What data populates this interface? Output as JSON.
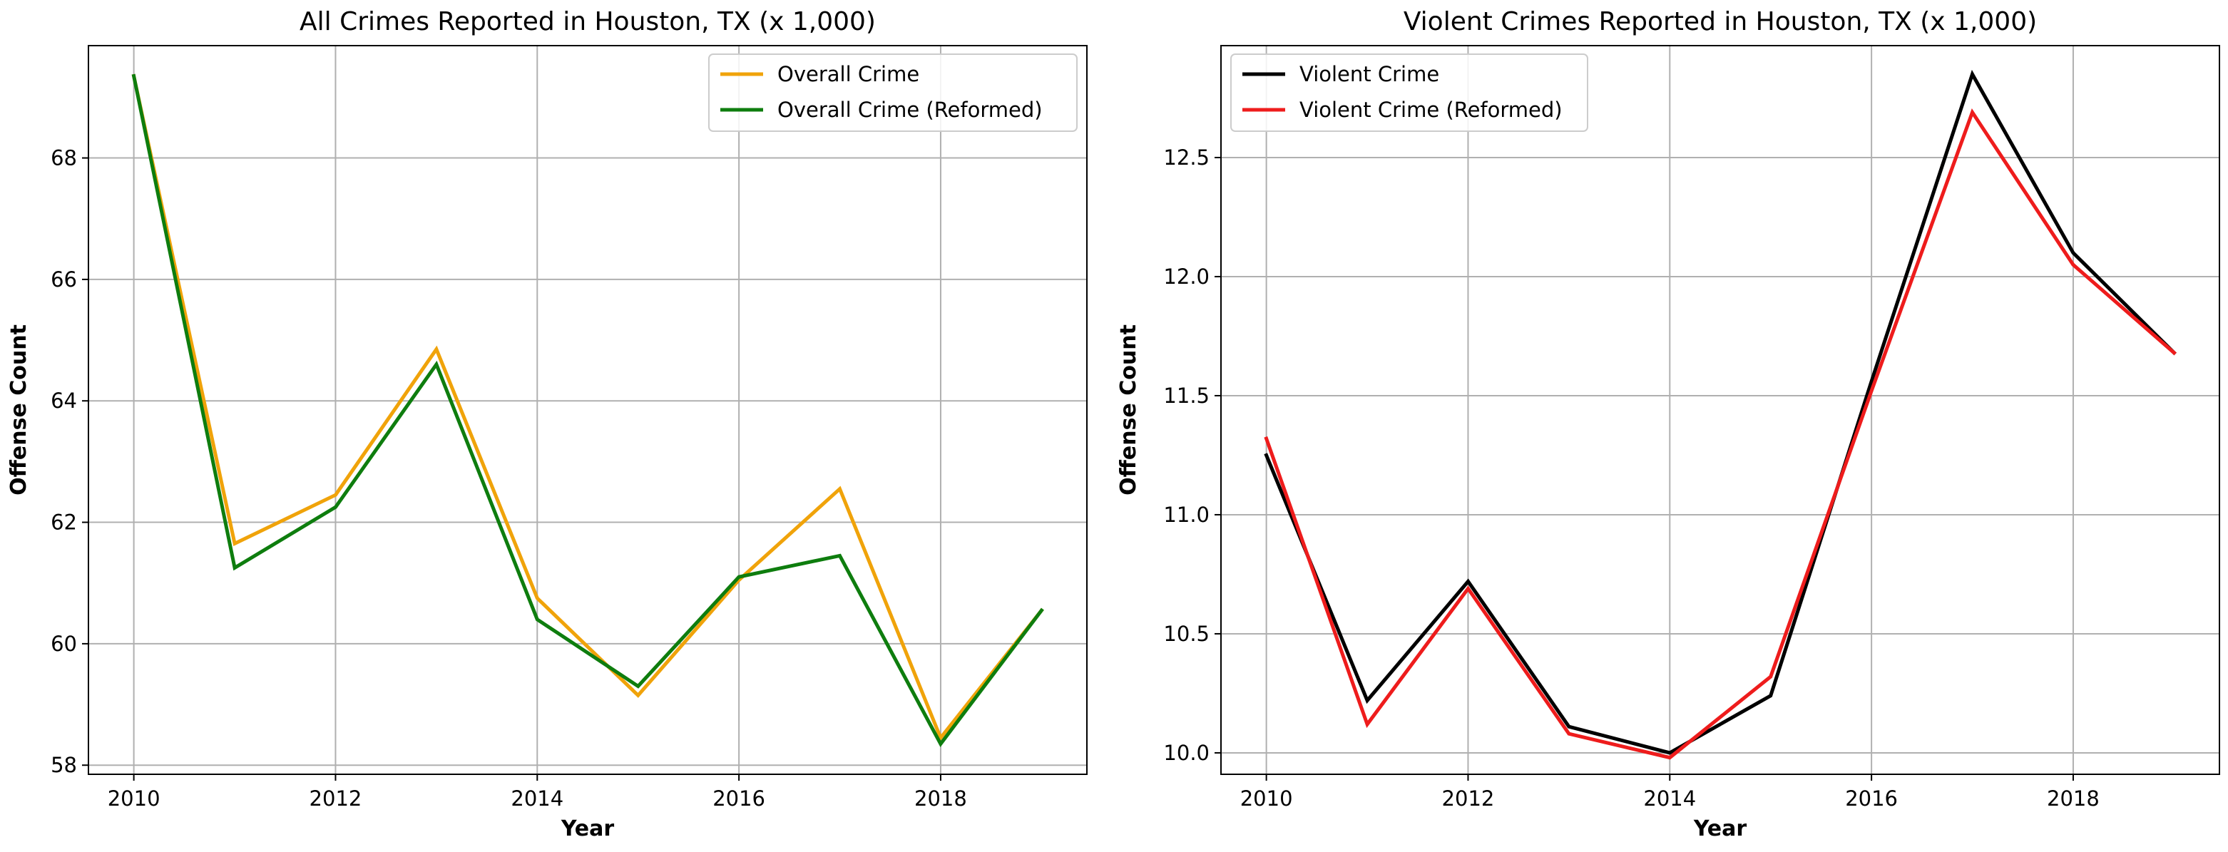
{
  "chart_data": [
    {
      "type": "line",
      "title": "All Crimes Reported in Houston, TX (x 1,000)",
      "xlabel": "Year",
      "ylabel": "Offense Count",
      "x": [
        2010,
        2011,
        2012,
        2013,
        2014,
        2015,
        2016,
        2017,
        2018,
        2019
      ],
      "xticks": [
        2010,
        2012,
        2014,
        2016,
        2018
      ],
      "yticks": [
        58,
        60,
        62,
        64,
        66,
        68
      ],
      "xlim": [
        2009.55,
        2019.45
      ],
      "ylim": [
        57.85,
        69.85
      ],
      "grid": true,
      "legend_position": "top-right",
      "series": [
        {
          "name": "Overall Crime",
          "color": "#f0a30a",
          "values": [
            69.35,
            61.65,
            62.45,
            64.85,
            60.75,
            59.15,
            61.05,
            62.55,
            58.45,
            60.55
          ]
        },
        {
          "name": "Overall Crime (Reformed)",
          "color": "#0e7d0e",
          "values": [
            69.35,
            61.25,
            62.25,
            64.6,
            60.4,
            59.3,
            61.1,
            61.45,
            58.35,
            60.55
          ]
        }
      ]
    },
    {
      "type": "line",
      "title": "Violent Crimes Reported in Houston, TX (x 1,000)",
      "xlabel": "Year",
      "ylabel": "Offense Count",
      "x": [
        2010,
        2011,
        2012,
        2013,
        2014,
        2015,
        2016,
        2017,
        2018,
        2019
      ],
      "xticks": [
        2010,
        2012,
        2014,
        2016,
        2018
      ],
      "yticks": [
        10.0,
        10.5,
        11.0,
        11.5,
        12.0,
        12.5
      ],
      "ytick_labels": [
        "10.0",
        "10.5",
        "11.0",
        "11.5",
        "12.0",
        "12.5"
      ],
      "xlim": [
        2009.55,
        2019.45
      ],
      "ylim": [
        9.91,
        12.97
      ],
      "grid": true,
      "legend_position": "top-left",
      "series": [
        {
          "name": "Violent Crime",
          "color": "#000000",
          "values": [
            11.25,
            10.22,
            10.72,
            10.11,
            10.0,
            10.24,
            11.56,
            12.85,
            12.1,
            11.68
          ]
        },
        {
          "name": "Violent Crime (Reformed)",
          "color": "#ee1c1c",
          "values": [
            11.32,
            10.12,
            10.69,
            10.08,
            9.98,
            10.32,
            11.52,
            12.69,
            12.05,
            11.68
          ]
        }
      ]
    }
  ]
}
